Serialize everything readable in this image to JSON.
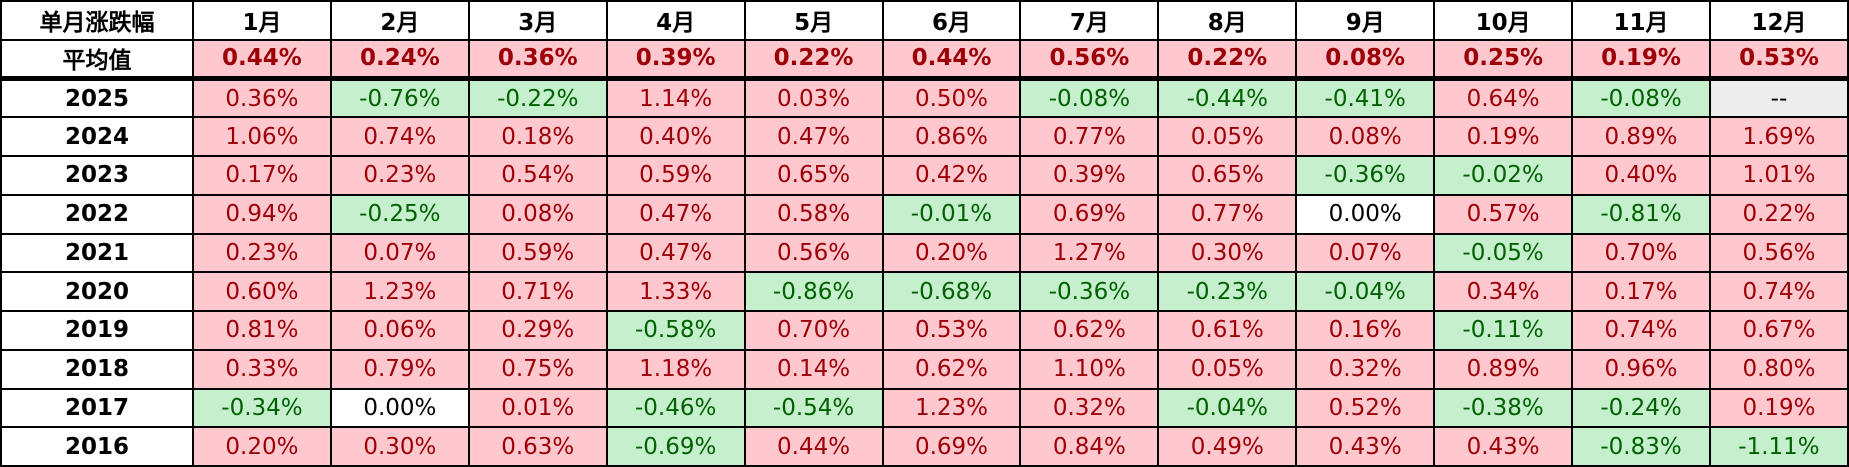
{
  "table": {
    "header": [
      "单月涨跌幅",
      "1月",
      "2月",
      "3月",
      "4月",
      "5月",
      "6月",
      "7月",
      "8月",
      "9月",
      "10月",
      "11月",
      "12月"
    ],
    "average": [
      "平均值",
      "0.44%",
      "0.24%",
      "0.36%",
      "0.39%",
      "0.22%",
      "0.44%",
      "0.56%",
      "0.22%",
      "0.08%",
      "0.25%",
      "0.19%",
      "0.53%"
    ],
    "rows": [
      [
        "2025",
        "0.36%",
        "-0.76%",
        "-0.22%",
        "1.14%",
        "0.03%",
        "0.50%",
        "-0.08%",
        "-0.44%",
        "-0.41%",
        "0.64%",
        "-0.08%",
        "--"
      ],
      [
        "2024",
        "1.06%",
        "0.74%",
        "0.18%",
        "0.40%",
        "0.47%",
        "0.86%",
        "0.77%",
        "0.05%",
        "0.08%",
        "0.19%",
        "0.89%",
        "1.69%"
      ],
      [
        "2023",
        "0.17%",
        "0.23%",
        "0.54%",
        "0.59%",
        "0.65%",
        "0.42%",
        "0.39%",
        "0.65%",
        "-0.36%",
        "-0.02%",
        "0.40%",
        "1.01%"
      ],
      [
        "2022",
        "0.94%",
        "-0.25%",
        "0.08%",
        "0.47%",
        "0.58%",
        "-0.01%",
        "0.69%",
        "0.77%",
        "0.00%",
        "0.57%",
        "-0.81%",
        "0.22%"
      ],
      [
        "2021",
        "0.23%",
        "0.07%",
        "0.59%",
        "0.47%",
        "0.56%",
        "0.20%",
        "1.27%",
        "0.30%",
        "0.07%",
        "-0.05%",
        "0.70%",
        "0.56%"
      ],
      [
        "2020",
        "0.60%",
        "1.23%",
        "0.71%",
        "1.33%",
        "-0.86%",
        "-0.68%",
        "-0.36%",
        "-0.23%",
        "-0.04%",
        "0.34%",
        "0.17%",
        "0.74%"
      ],
      [
        "2019",
        "0.81%",
        "0.06%",
        "0.29%",
        "-0.58%",
        "0.70%",
        "0.53%",
        "0.62%",
        "0.61%",
        "0.16%",
        "-0.11%",
        "0.74%",
        "0.67%"
      ],
      [
        "2018",
        "0.33%",
        "0.79%",
        "0.75%",
        "1.18%",
        "0.14%",
        "0.62%",
        "1.10%",
        "0.05%",
        "0.32%",
        "0.89%",
        "0.96%",
        "0.80%"
      ],
      [
        "2017",
        "-0.34%",
        "0.00%",
        "0.01%",
        "-0.46%",
        "-0.54%",
        "1.23%",
        "0.32%",
        "-0.04%",
        "0.52%",
        "-0.38%",
        "-0.24%",
        "0.19%"
      ],
      [
        "2016",
        "0.20%",
        "0.30%",
        "0.63%",
        "-0.69%",
        "0.44%",
        "0.69%",
        "0.84%",
        "0.49%",
        "0.43%",
        "0.43%",
        "-0.83%",
        "-1.11%"
      ]
    ]
  }
}
